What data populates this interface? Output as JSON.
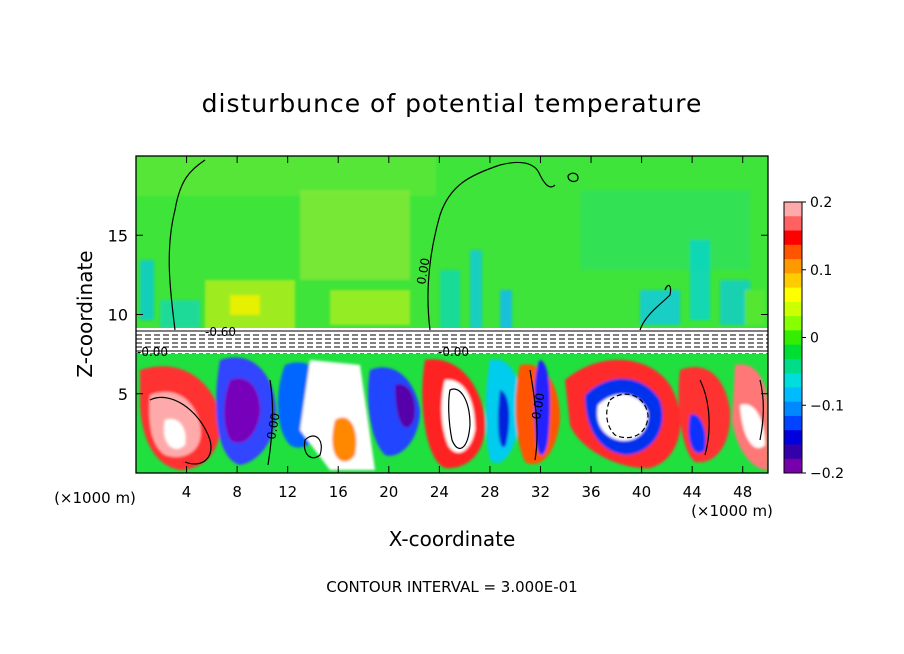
{
  "chart_data": {
    "type": "heatmap",
    "title": "disturbunce of potential temperature",
    "xlabel": "X-coordinate",
    "ylabel": "Z-coordinate",
    "x_unit_label": "(×1000 m)",
    "y_unit_label": "(×1000 m)",
    "xlim": [
      0,
      50
    ],
    "ylim": [
      0,
      20
    ],
    "x_ticks": [
      4,
      8,
      12,
      16,
      20,
      24,
      28,
      32,
      36,
      40,
      44,
      48
    ],
    "y_ticks": [
      5,
      10,
      15
    ],
    "colorbar": {
      "range": [
        -0.2,
        0.2
      ],
      "tick_values": [
        0.2,
        0.1,
        0,
        -0.1,
        -0.2
      ],
      "tick_labels": [
        "0.2",
        "0.1",
        "0",
        "−0.1",
        "−0.2"
      ],
      "colors": [
        "#ffaaaa",
        "#ff6060",
        "#ff0000",
        "#ff5500",
        "#ff9900",
        "#ffcc00",
        "#ffff00",
        "#ccff00",
        "#88ff00",
        "#33ee00",
        "#00dd33",
        "#00dd88",
        "#00dddd",
        "#00bbff",
        "#0088ff",
        "#0044ff",
        "#0000dd",
        "#3300aa",
        "#7700aa"
      ]
    },
    "contour_labels": [
      "0.00",
      "0.00",
      "0.00",
      "-0.60",
      "-0.00",
      "-0.00"
    ],
    "grid": false,
    "legend": "colorbar-right",
    "footer": "CONTOUR INTERVAL = 3.000E-01"
  }
}
